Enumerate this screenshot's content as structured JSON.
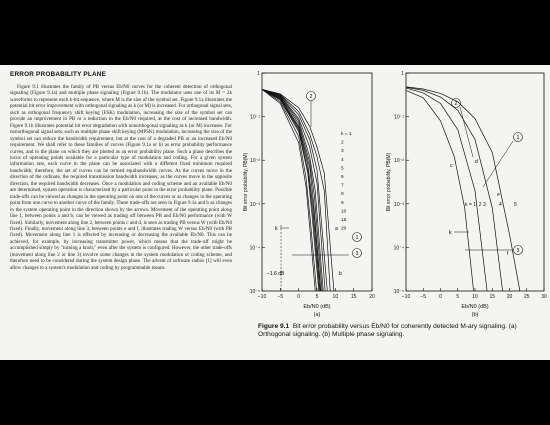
{
  "section": {
    "title": "ERROR PROBABILITY PLANE",
    "body": "Figure 9.1 illustrates the family of PB versus Eb/N0 curves for the coherent detection of orthogonal signaling (Figure 9.1a) and multiple phase signaling (Figure 9.1b). The modulator uses one of its M = 2k waveforms to represent each k-bit sequence, where M is the size of the symbol set. Figure 9.1a illustrates the potential bit error improvement with orthogonal signaling as k (or M) is increased. For orthogonal signal sets, such as orthogonal frequency shift keying (FSK) modulation, increasing the size of the symbol set can provide an improvement in PB or a reduction in the Eb/N0 required, at the cost of increased bandwidth. Figure 9.1b illustrates potential bit error degradation with nonorthogonal signaling as k (or M) increases. For nonorthogonal signal sets, such as multiple phase shift keying (MPSK) modulation, increasing the size of the symbol set can reduce the bandwidth requirement, but at the cost of a degraded PB or an increased Eb/N0 requirement. We shall refer to these families of curves (Figure 9.1a or b) as error probability performance curves, and to the plane on which they are plotted as an error probability plane. Such a plane describes the locus of operating points available for a particular type of modulation and coding. For a given system information rate, each curve in the plane can be associated with a different fixed minimum required bandwidth; therefore, the set of curves can be termed equibandwidth curves. As the curves move in the direction of the ordinate, the required transmission bandwidth increases; as the curves move in the opposite direction, the required bandwidth decreases. Once a modulation and coding scheme and an available Eb/N0 are determined, system operation is characterized by a particular point in the error probability plane. Possible trade-offs can be viewed as changes in the operating point on one of the curves or as changes in the operating point from one curve to another curve of the family. These trade-offs are seen in Figure 9.1a and b as changes in the system operating point in the direction shown by the arrows. Movement of the operating point along line 1, between points a and b, can be viewed as trading off between PB and Eb/N0 performance (with W fixed). Similarly, movement along line 2, between points c and d, is seen as trading PB versus W (with Eb/N0 fixed). Finally, movement along line 3, between points e and f, illustrates trading W versus Eb/N0 (with PB fixed). Movement along line 1 is effected by increasing or decreasing the available Eb/N0. This can be achieved, for example, by increasing transmitter power, which means that the trade-off might be accomplished simply by \"turning a knob,\" even after the system is configured. However, the other trade-offs (movement along line 2 or line 3) involve some changes in the system modulation or coding scheme, and therefore need to be considered during the system design phase. The advent of software radios [1] will even allow changes to a system's modulation and coding by programmable means."
  },
  "figure": {
    "label": "Figure 9.1",
    "caption": "Bit error probability versus Eb/N0 for coherently detected M-ary signaling. (a) Orthogonal signaling. (b) Multiple phase signaling.",
    "ylabel": "Bit error probability, PB(M)",
    "xlabel": "Eb/N0 (dB)"
  },
  "panel_a": {
    "id": "(a)",
    "xticks": [
      "−10",
      "−5",
      "0",
      "5",
      "10",
      "15",
      "20"
    ],
    "yticks": [
      "1",
      "10⁻¹",
      "10⁻²",
      "10⁻³",
      "10⁻⁴",
      "10⁻⁵"
    ],
    "k_labels": [
      "k = 1",
      "2",
      "3",
      "4",
      "5",
      "6",
      "7",
      "8",
      "9",
      "10",
      "15",
      "20"
    ],
    "annotations": [
      "k",
      "−1.6 dB",
      "②",
      "①",
      "③",
      "a",
      "b"
    ]
  },
  "panel_b": {
    "id": "(b)",
    "xticks": [
      "−10",
      "−5",
      "0",
      "5",
      "10",
      "15",
      "20",
      "25",
      "30"
    ],
    "yticks": [
      "1",
      "10⁻¹",
      "10⁻²",
      "10⁻³",
      "10⁻⁴",
      "10⁻⁵"
    ],
    "k_labels": [
      "k = 1, 2",
      "3",
      "4",
      "5"
    ],
    "annotations": [
      "k",
      "②",
      "①",
      "③",
      "c",
      "d",
      "e",
      "f"
    ]
  },
  "chart_data": [
    {
      "type": "line",
      "panel": "(a)",
      "xlabel": "Eb/N0 (dB)",
      "ylabel": "Bit error probability, PB(M)",
      "xlim": [
        -10,
        20
      ],
      "ylim": [
        1e-05,
        1
      ],
      "yscale": "log",
      "series": [
        {
          "name": "k = 1",
          "x": [
            -10,
            -5,
            0,
            3,
            5,
            7,
            9.6
          ],
          "y": [
            0.42,
            0.33,
            0.16,
            0.06,
            0.02,
            0.005,
            1e-05
          ]
        },
        {
          "name": "2",
          "x": [
            -10,
            -5,
            0,
            3,
            5,
            7,
            8.6
          ],
          "y": [
            0.42,
            0.32,
            0.13,
            0.04,
            0.012,
            0.002,
            1e-05
          ]
        },
        {
          "name": "3",
          "x": [
            -10,
            -5,
            0,
            3,
            5,
            7.8
          ],
          "y": [
            0.42,
            0.31,
            0.11,
            0.03,
            0.006,
            1e-05
          ]
        },
        {
          "name": "4",
          "x": [
            -10,
            -5,
            0,
            3,
            5,
            7.2
          ],
          "y": [
            0.42,
            0.3,
            0.09,
            0.02,
            0.003,
            1e-05
          ]
        },
        {
          "name": "5",
          "x": [
            -10,
            -5,
            0,
            3,
            4.5,
            6.7
          ],
          "y": [
            0.42,
            0.29,
            0.08,
            0.012,
            0.002,
            1e-05
          ]
        },
        {
          "name": "6",
          "x": [
            -10,
            -5,
            0,
            3,
            4.3,
            6.4
          ],
          "y": [
            0.42,
            0.28,
            0.07,
            0.009,
            0.0015,
            1e-05
          ]
        },
        {
          "name": "7",
          "x": [
            -10,
            -5,
            0,
            3,
            4.1,
            6.1
          ],
          "y": [
            0.42,
            0.27,
            0.06,
            0.007,
            0.001,
            1e-05
          ]
        },
        {
          "name": "8",
          "x": [
            -10,
            -5,
            0,
            2.5,
            4,
            5.9
          ],
          "y": [
            0.42,
            0.26,
            0.055,
            0.008,
            0.0008,
            1e-05
          ]
        },
        {
          "name": "9",
          "x": [
            -10,
            -5,
            0,
            2.5,
            3.8,
            5.7
          ],
          "y": [
            0.42,
            0.25,
            0.05,
            0.006,
            0.0007,
            1e-05
          ]
        },
        {
          "name": "10",
          "x": [
            -10,
            -5,
            0,
            2.5,
            3.6,
            5.5
          ],
          "y": [
            0.42,
            0.24,
            0.045,
            0.005,
            0.0006,
            1e-05
          ]
        },
        {
          "name": "15",
          "x": [
            -10,
            -5,
            0,
            2,
            3.2,
            4.9
          ],
          "y": [
            0.42,
            0.22,
            0.035,
            0.004,
            0.0004,
            1e-05
          ]
        },
        {
          "name": "20",
          "x": [
            -10,
            -5,
            0,
            2,
            3,
            4.5
          ],
          "y": [
            0.42,
            0.2,
            0.025,
            0.0025,
            0.0003,
            1e-05
          ]
        }
      ]
    },
    {
      "type": "line",
      "panel": "(b)",
      "xlabel": "Eb/N0 (dB)",
      "ylabel": "Bit error probability, PB(M)",
      "xlim": [
        -10,
        30
      ],
      "ylim": [
        1e-05,
        1
      ],
      "yscale": "log",
      "series": [
        {
          "name": "k = 1, 2",
          "x": [
            -10,
            -5,
            0,
            4,
            7,
            9.6
          ],
          "y": [
            0.4,
            0.27,
            0.08,
            0.012,
            0.0008,
            1e-05
          ]
        },
        {
          "name": "3",
          "x": [
            -10,
            -5,
            0,
            5,
            10,
            13.5
          ],
          "y": [
            0.45,
            0.35,
            0.2,
            0.05,
            0.002,
            1e-05
          ]
        },
        {
          "name": "4",
          "x": [
            -10,
            -5,
            0,
            5,
            10,
            15,
            18
          ],
          "y": [
            0.47,
            0.4,
            0.28,
            0.14,
            0.03,
            0.0008,
            1e-05
          ]
        },
        {
          "name": "5",
          "x": [
            -10,
            -5,
            0,
            5,
            10,
            15,
            20,
            23
          ],
          "y": [
            0.48,
            0.43,
            0.34,
            0.22,
            0.09,
            0.015,
            0.0002,
            1e-05
          ]
        }
      ]
    }
  ]
}
